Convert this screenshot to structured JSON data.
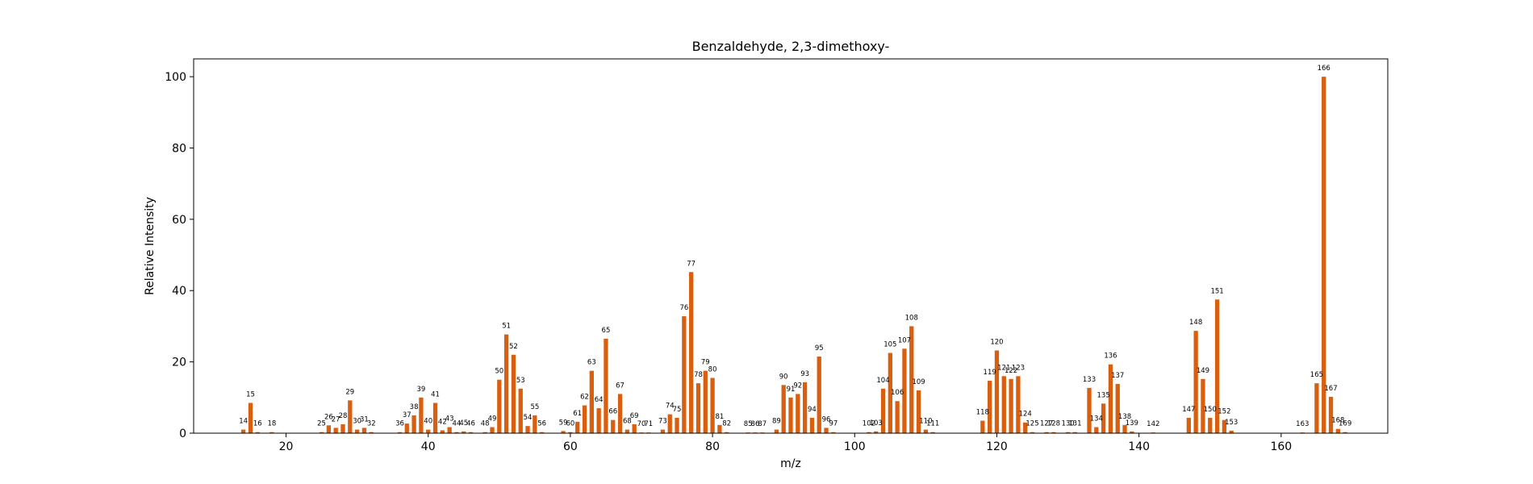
{
  "chart_data": {
    "type": "bar",
    "title": "Benzaldehyde, 2,3-dimethoxy-",
    "xlabel": "m/z",
    "ylabel": "Relative Intensity",
    "xlim": [
      7,
      175
    ],
    "ylim": [
      0,
      105
    ],
    "xticks": [
      20,
      40,
      60,
      80,
      100,
      120,
      140,
      160
    ],
    "yticks": [
      0,
      20,
      40,
      60,
      80,
      100
    ],
    "bar_color": "#d95f0e",
    "grid": false,
    "x": [
      14,
      15,
      16,
      18,
      25,
      26,
      27,
      28,
      29,
      30,
      31,
      32,
      36,
      37,
      38,
      39,
      40,
      41,
      42,
      43,
      44,
      45,
      46,
      48,
      49,
      50,
      51,
      52,
      53,
      54,
      55,
      56,
      59,
      60,
      61,
      62,
      63,
      64,
      65,
      66,
      67,
      68,
      69,
      70,
      71,
      73,
      74,
      75,
      76,
      77,
      78,
      79,
      80,
      81,
      82,
      85,
      86,
      87,
      89,
      90,
      91,
      92,
      93,
      94,
      95,
      96,
      97,
      102,
      103,
      104,
      105,
      106,
      107,
      108,
      109,
      110,
      111,
      118,
      119,
      120,
      121,
      122,
      123,
      124,
      125,
      127,
      128,
      130,
      131,
      133,
      134,
      135,
      136,
      137,
      138,
      139,
      142,
      147,
      148,
      149,
      150,
      151,
      152,
      153,
      163,
      165,
      166,
      167,
      168,
      169
    ],
    "values": [
      1.0,
      8.5,
      0.3,
      0.3,
      0.3,
      2.2,
      1.5,
      2.5,
      9.2,
      1.0,
      1.5,
      0.3,
      0.3,
      2.7,
      5.0,
      10.0,
      1.0,
      8.5,
      0.8,
      1.7,
      0.3,
      0.5,
      0.3,
      0.3,
      1.7,
      15.0,
      27.7,
      22.0,
      12.5,
      2.0,
      5.0,
      0.3,
      0.6,
      0.3,
      3.2,
      7.8,
      17.5,
      7.0,
      26.5,
      3.7,
      11.0,
      1.0,
      2.5,
      0.2,
      0.2,
      1.0,
      5.3,
      4.3,
      32.8,
      45.2,
      14.0,
      17.5,
      15.5,
      2.3,
      0.3,
      0.2,
      0.2,
      0.2,
      1.0,
      13.5,
      10.0,
      11.0,
      14.3,
      4.3,
      21.5,
      1.5,
      0.3,
      0.3,
      0.5,
      12.5,
      22.5,
      9.0,
      23.7,
      30.0,
      12.0,
      1.0,
      0.3,
      3.5,
      14.7,
      23.2,
      16.0,
      15.2,
      16.0,
      3.0,
      0.3,
      0.3,
      0.3,
      0.3,
      0.3,
      12.7,
      1.7,
      8.3,
      19.3,
      13.8,
      2.3,
      0.5,
      0.2,
      4.3,
      28.7,
      15.2,
      4.3,
      37.5,
      3.7,
      0.7,
      0.2,
      14.0,
      100.0,
      10.2,
      1.2,
      0.3
    ]
  }
}
